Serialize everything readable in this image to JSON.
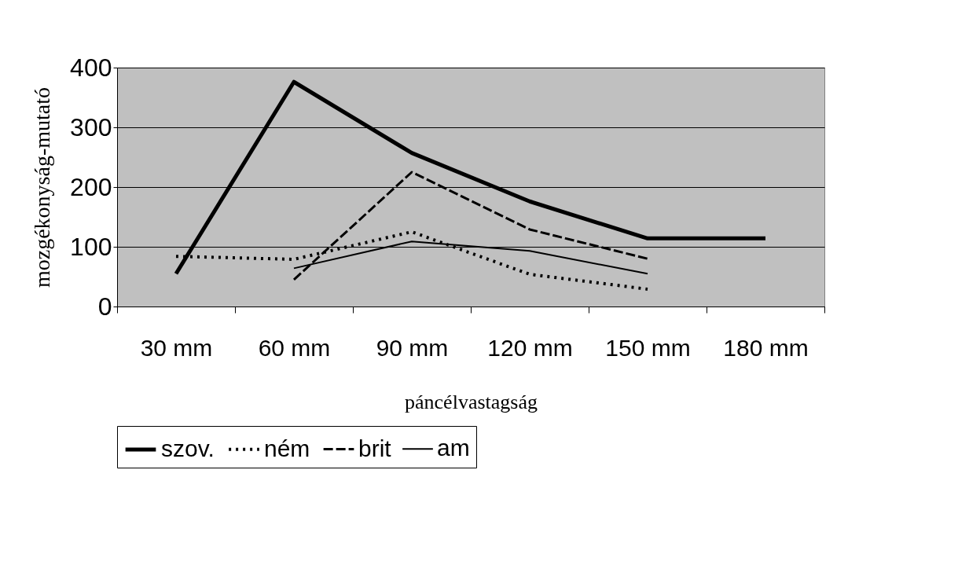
{
  "chart_data": {
    "type": "line",
    "xlabel": "páncélvastagság",
    "ylabel": "mozgékonyság-mutató",
    "categories": [
      "30 mm",
      "60 mm",
      "90 mm",
      "120 mm",
      "150 mm",
      "180 mm"
    ],
    "series": [
      {
        "name": "szov.",
        "color": "#000000",
        "line_style": "solid",
        "values": [
          55,
          376,
          257,
          176,
          114,
          114
        ]
      },
      {
        "name": "ném",
        "color": "#000000",
        "line_style": "dotted",
        "values": [
          84,
          79,
          125,
          54,
          29,
          null
        ]
      },
      {
        "name": "brit",
        "color": "#000000",
        "line_style": "dashed",
        "values": [
          null,
          45,
          225,
          129,
          80,
          null
        ]
      },
      {
        "name": "am",
        "color": "#000000",
        "line_style": "solid",
        "values": [
          null,
          64,
          109,
          93,
          55,
          null
        ]
      }
    ],
    "ylim": [
      0,
      400
    ],
    "yticks": [
      0,
      100,
      200,
      300,
      400
    ],
    "grid": "y",
    "legend": "bottom",
    "marker": "none"
  }
}
